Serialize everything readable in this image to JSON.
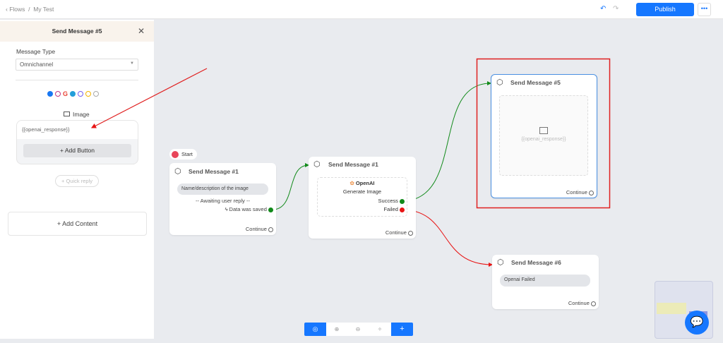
{
  "topbar": {
    "back": "Flows",
    "sep": "/",
    "flow_name": "My Test",
    "publish": "Publish",
    "more": "•••"
  },
  "panel": {
    "title": "Send Message #5",
    "message_type_label": "Message Type",
    "message_type_value": "Omnichannel",
    "image_label": "Image",
    "image_value": "{{openai_response}}",
    "add_button": "+ Add Button",
    "quick_reply": "+ Quick reply",
    "add_content": "Add Content"
  },
  "channels": [
    "messenger",
    "instagram",
    "google",
    "telegram",
    "viber",
    "sms",
    "chat"
  ],
  "canvas": {
    "start": "Start",
    "node1": {
      "title": "Send Message #1",
      "input": "Name/description of the image",
      "awaiting": "-- Awaiting user reply --",
      "saved": "Data was saved",
      "continue": "Continue"
    },
    "node2": {
      "title": "Send Message #1",
      "service": "OpenAI",
      "action": "Generate Image",
      "success": "Success",
      "failed": "Failed",
      "continue": "Continue"
    },
    "node5": {
      "title": "Send Message #5",
      "image_text": "{{openai_response}}",
      "continue": "Continue"
    },
    "node6": {
      "title": "Send Message #6",
      "message": "Openai Failed",
      "continue": "Continue"
    }
  },
  "colors": {
    "accent": "#1677ff",
    "success": "#118a1a",
    "failed": "#e81414",
    "highlight": "#e02020"
  }
}
